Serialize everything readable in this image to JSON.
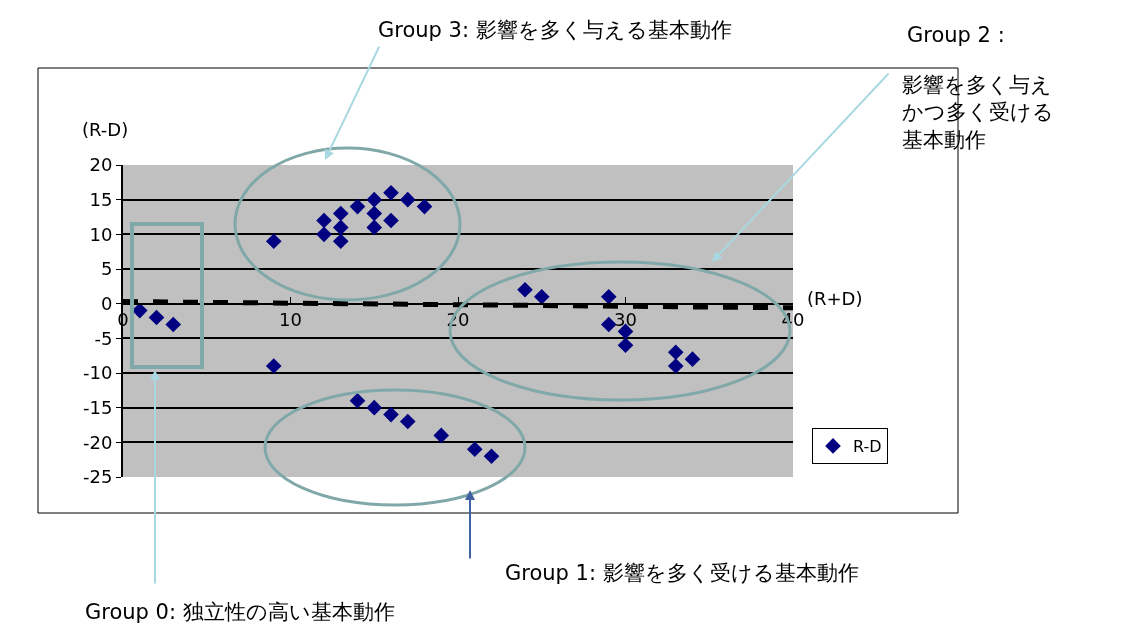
{
  "chart_data": {
    "type": "scatter",
    "xlabel": "(R+D)",
    "ylabel": "(R-D)",
    "xlim": [
      0,
      40
    ],
    "xticks": [
      0,
      10,
      20,
      30,
      40
    ],
    "ylim": [
      -25,
      20
    ],
    "yticks": [
      -25,
      -20,
      -15,
      -10,
      -5,
      0,
      5,
      10,
      15,
      20
    ],
    "grid": "y",
    "legend": "bottom right",
    "marker": "diamond",
    "series": [
      {
        "name": "R-D",
        "color": "#000080",
        "x": [
          1,
          2,
          3,
          9,
          12,
          12,
          13,
          13,
          13,
          14,
          15,
          15,
          15,
          16,
          16,
          17,
          18,
          9,
          14,
          15,
          16,
          17,
          19,
          21,
          22,
          24,
          25,
          29,
          29,
          30,
          30,
          33,
          33,
          34
        ],
        "values": [
          -1,
          -2,
          -3,
          9,
          12,
          10,
          13,
          11,
          9,
          14,
          15,
          13,
          11,
          16,
          12,
          15,
          14,
          -9,
          -14,
          -15,
          -16,
          -17,
          -19,
          -21,
          -22,
          2,
          1,
          1,
          -3,
          -4,
          -6,
          -7,
          -9,
          -8
        ]
      },
      {
        "type": "line",
        "color": "#000000",
        "line_style": "dashed",
        "marker": "none",
        "x": [
          0,
          40
        ],
        "values": [
          0.3,
          -0.6
        ]
      }
    ],
    "annotations": [
      "Group 3: 影響を多く与える基本動作",
      "Group 2 :",
      "影響を多く与えかつ多く受ける基本動作",
      "Group 1: 影響を多く受ける基本動作",
      "Group 0: 独立性の高い基本動作"
    ]
  }
}
